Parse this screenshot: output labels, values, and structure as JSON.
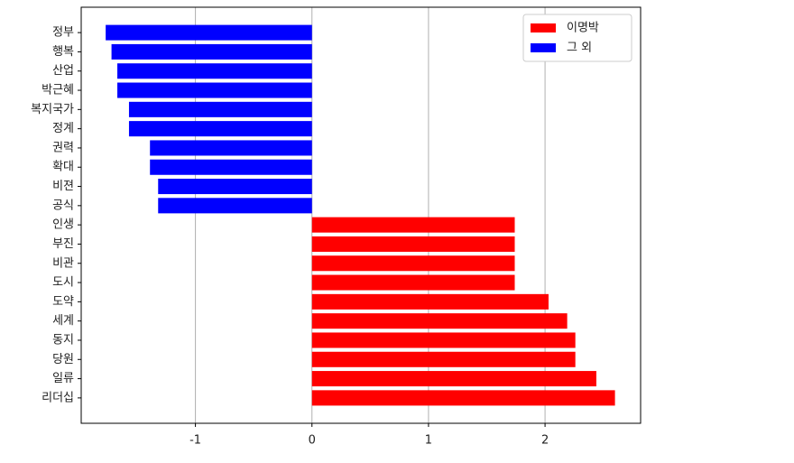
{
  "chart_data": {
    "type": "barh",
    "categories": [
      "정부",
      "행복",
      "산업",
      "박근혜",
      "복지국가",
      "정계",
      "권력",
      "확대",
      "비젼",
      "공식",
      "인생",
      "부진",
      "비관",
      "도시",
      "도약",
      "세계",
      "동지",
      "당원",
      "일류",
      "리더십"
    ],
    "series": [
      {
        "name": "이명박",
        "color": "#ff0000",
        "values": [
          null,
          null,
          null,
          null,
          null,
          null,
          null,
          null,
          null,
          null,
          1.74,
          1.74,
          1.74,
          1.74,
          2.03,
          2.19,
          2.26,
          2.26,
          2.44,
          2.6
        ]
      },
      {
        "name": "그 외",
        "color": "#0000ff",
        "values": [
          -1.77,
          -1.72,
          -1.67,
          -1.67,
          -1.57,
          -1.57,
          -1.39,
          -1.39,
          -1.32,
          -1.32,
          null,
          null,
          null,
          null,
          null,
          null,
          null,
          null,
          null,
          null
        ]
      }
    ],
    "xlim": [
      -1.98,
      2.82
    ],
    "xticks": [
      -1,
      0,
      1,
      2
    ],
    "grid": true,
    "legend": "upper right"
  }
}
